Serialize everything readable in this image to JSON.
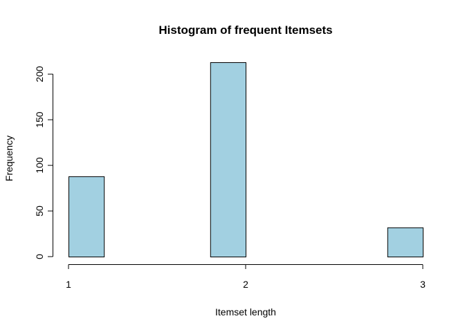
{
  "chart_data": {
    "type": "bar",
    "title": "Histogram of frequent Itemsets",
    "xlabel": "Itemset length",
    "ylabel": "Frequency",
    "bin_edges": [
      1.0,
      1.2,
      1.4,
      1.6,
      1.8,
      2.0,
      2.2,
      2.4,
      2.6,
      2.8,
      3.0
    ],
    "values": [
      88,
      0,
      0,
      0,
      213,
      0,
      0,
      0,
      0,
      32
    ],
    "xlim": [
      1,
      3
    ],
    "ylim": [
      0,
      213
    ],
    "x_ticks": [
      1,
      2,
      3
    ],
    "x_tick_labels": [
      "1",
      "2",
      "3"
    ],
    "y_ticks": [
      0,
      50,
      100,
      150,
      200
    ],
    "y_tick_labels": [
      "0",
      "50",
      "100",
      "150",
      "200"
    ],
    "bar_color": "#a2d0e1",
    "grid": false,
    "legend": "none"
  }
}
